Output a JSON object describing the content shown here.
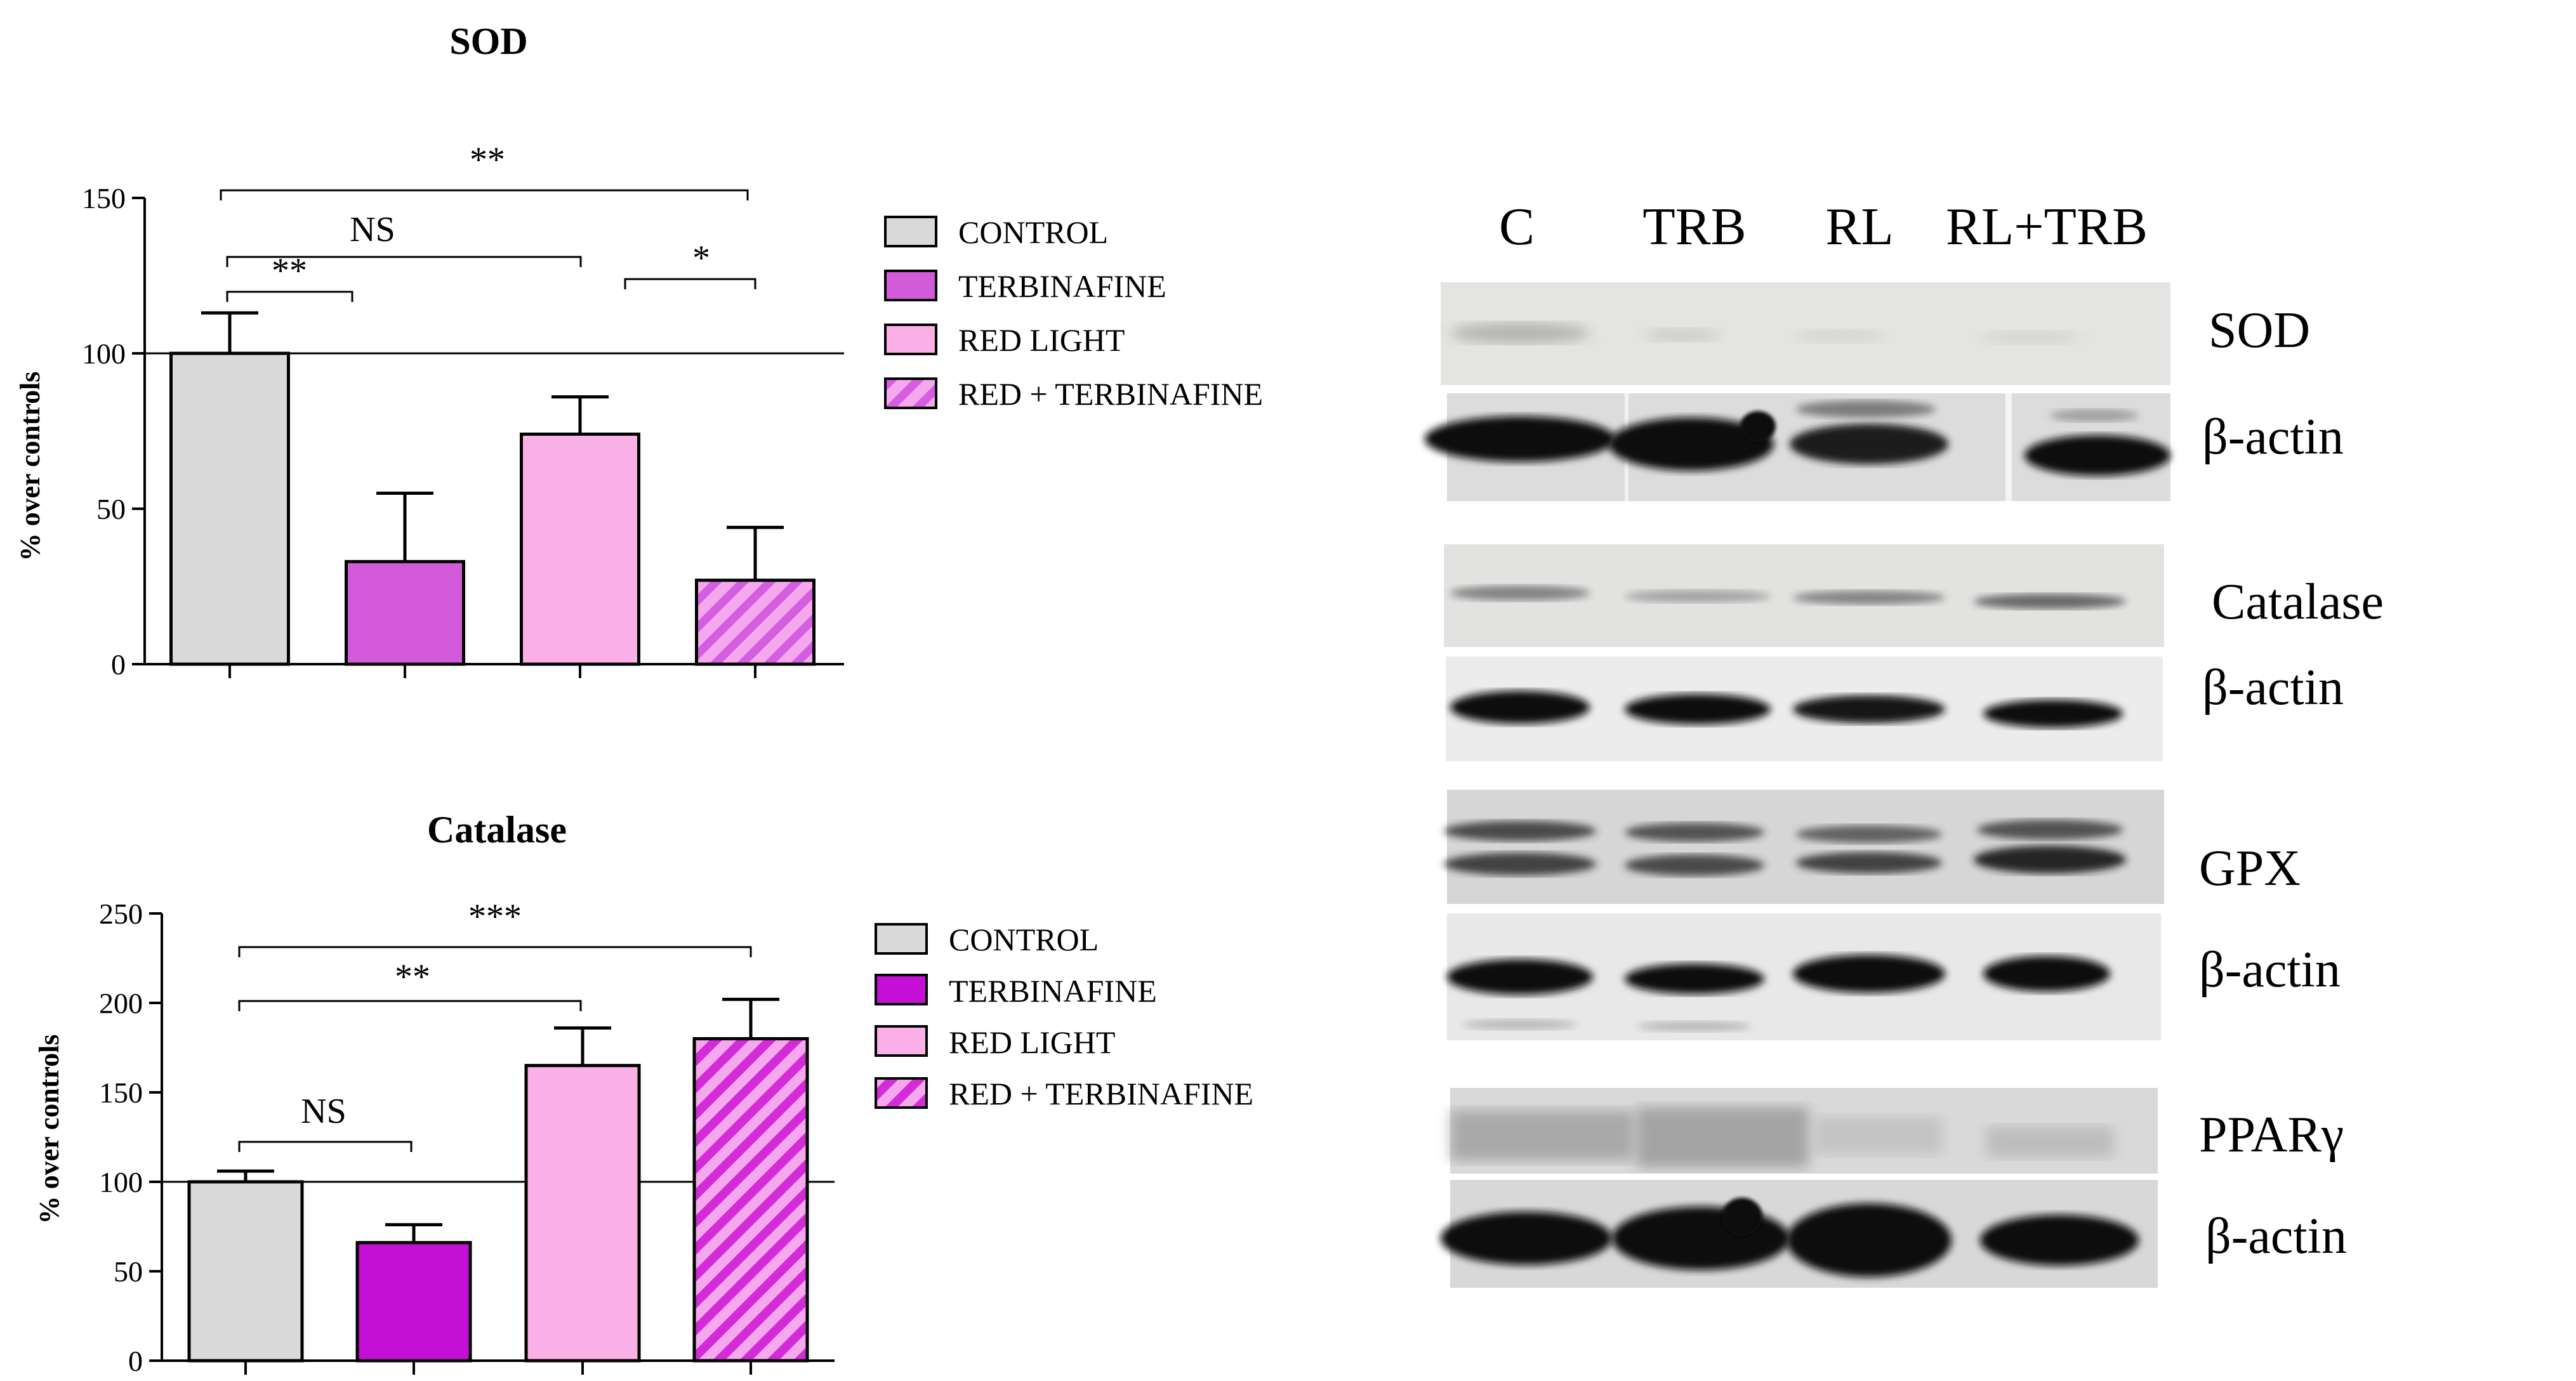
{
  "colors": {
    "control": "#d9d9d9",
    "terbinafine_sod": "#d35ad9",
    "terbinafine_cat": "#c410d6",
    "red_light": "#fcb0e8",
    "red_terb_sod_bg": "#f5a8ee",
    "red_terb_sod_stripe": "#d45ee0",
    "red_terb_cat_bg": "#f5a8ee",
    "red_terb_cat_stripe": "#d42bd8"
  },
  "chart_data": [
    {
      "type": "bar",
      "title": "SOD",
      "ylabel": "% over controls",
      "ylim": [
        0,
        150
      ],
      "yticks": [
        "0",
        "50",
        "100",
        "150"
      ],
      "reference_line": 100,
      "categories": [
        "CONTROL",
        "TERBINAFINE",
        "RED LIGHT",
        "RED + TERBINAFINE"
      ],
      "values": [
        100,
        33,
        74,
        27
      ],
      "errors": [
        13,
        22,
        12,
        17
      ],
      "legend": [
        "CONTROL",
        "TERBINAFINE",
        "RED LIGHT",
        "RED + TERBINAFINE"
      ],
      "significance": [
        {
          "label": "**",
          "from": 0,
          "to": 3
        },
        {
          "label": "NS",
          "from": 0,
          "to": 2
        },
        {
          "label": "**",
          "from": 0,
          "to": 1
        },
        {
          "label": "*",
          "from": 2,
          "to": 3
        }
      ]
    },
    {
      "type": "bar",
      "title": "Catalase",
      "ylabel": "% over controls",
      "ylim": [
        0,
        250
      ],
      "yticks": [
        "0",
        "50",
        "100",
        "150",
        "200",
        "250"
      ],
      "reference_line": 100,
      "categories": [
        "CONTROL",
        "TERBINAFINE",
        "RED LIGHT",
        "RED + TERBINAFINE"
      ],
      "values": [
        100,
        66,
        165,
        180
      ],
      "errors": [
        6,
        10,
        21,
        22
      ],
      "legend": [
        "CONTROL",
        "TERBINAFINE",
        "RED LIGHT",
        "RED + TERBINAFINE"
      ],
      "significance": [
        {
          "label": "***",
          "from": 0,
          "to": 3
        },
        {
          "label": "**",
          "from": 0,
          "to": 2
        },
        {
          "label": "NS",
          "from": 0,
          "to": 1
        }
      ]
    }
  ],
  "blot": {
    "lanes": [
      "C",
      "TRB",
      "RL",
      "RL+TRB"
    ],
    "labels": [
      "SOD",
      "β-actin",
      "Catalase",
      "β-actin",
      "GPX",
      "β-actin",
      "PPARγ",
      "β-actin"
    ]
  }
}
